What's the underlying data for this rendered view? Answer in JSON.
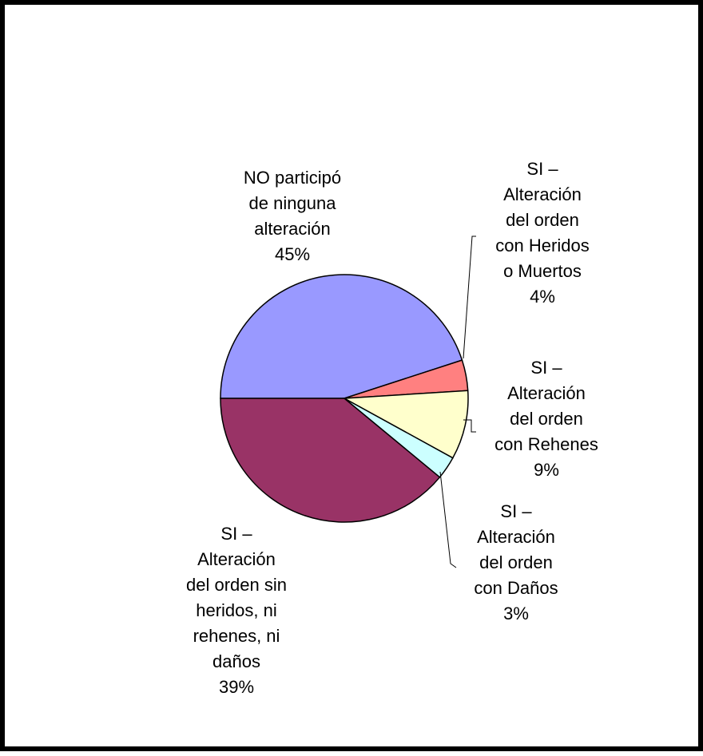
{
  "chart_data": {
    "type": "pie",
    "slices": [
      {
        "label_lines": [
          "NO participó",
          "de ninguna",
          "alteración"
        ],
        "percent_label": "45%",
        "value": 45,
        "color": "#9999ff"
      },
      {
        "label_lines": [
          "SI –",
          "Alteración",
          "del orden",
          "con Heridos",
          "o Muertos"
        ],
        "percent_label": "4%",
        "value": 4,
        "color": "#ff8080"
      },
      {
        "label_lines": [
          "SI –",
          "Alteración",
          "del orden",
          "con Rehenes"
        ],
        "percent_label": "9%",
        "value": 9,
        "color": "#ffffcc"
      },
      {
        "label_lines": [
          "SI –",
          "Alteración",
          "del orden",
          "con Daños"
        ],
        "percent_label": "3%",
        "value": 3,
        "color": "#ccffff"
      },
      {
        "label_lines": [
          "SI –",
          "Alteración",
          "del orden sin",
          "heridos, ni",
          "rehenes, ni",
          "daños"
        ],
        "percent_label": "39%",
        "value": 39,
        "color": "#993366"
      }
    ],
    "start_angle": "left (9 o'clock), clockwise"
  }
}
